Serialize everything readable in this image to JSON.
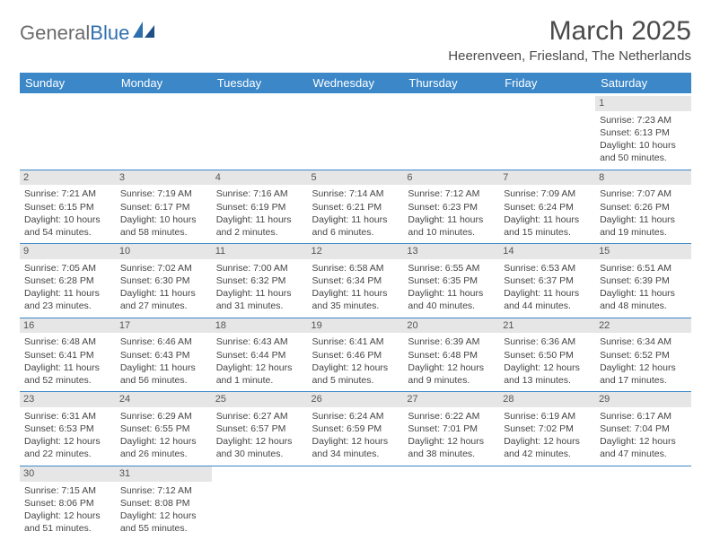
{
  "logo": {
    "text_a": "General",
    "text_b": "Blue"
  },
  "title": "March 2025",
  "subtitle": "Heerenveen, Friesland, The Netherlands",
  "colors": {
    "header_bg": "#3b87c8",
    "header_fg": "#ffffff",
    "daynum_bg": "#e6e6e6",
    "row_sep": "#3b87c8",
    "text": "#444444"
  },
  "day_headers": [
    "Sunday",
    "Monday",
    "Tuesday",
    "Wednesday",
    "Thursday",
    "Friday",
    "Saturday"
  ],
  "weeks": [
    [
      {
        "n": "",
        "empty": true
      },
      {
        "n": "",
        "empty": true
      },
      {
        "n": "",
        "empty": true
      },
      {
        "n": "",
        "empty": true
      },
      {
        "n": "",
        "empty": true
      },
      {
        "n": "",
        "empty": true
      },
      {
        "n": "1",
        "sr": "Sunrise: 7:23 AM",
        "ss": "Sunset: 6:13 PM",
        "dl": "Daylight: 10 hours and 50 minutes."
      }
    ],
    [
      {
        "n": "2",
        "sr": "Sunrise: 7:21 AM",
        "ss": "Sunset: 6:15 PM",
        "dl": "Daylight: 10 hours and 54 minutes."
      },
      {
        "n": "3",
        "sr": "Sunrise: 7:19 AM",
        "ss": "Sunset: 6:17 PM",
        "dl": "Daylight: 10 hours and 58 minutes."
      },
      {
        "n": "4",
        "sr": "Sunrise: 7:16 AM",
        "ss": "Sunset: 6:19 PM",
        "dl": "Daylight: 11 hours and 2 minutes."
      },
      {
        "n": "5",
        "sr": "Sunrise: 7:14 AM",
        "ss": "Sunset: 6:21 PM",
        "dl": "Daylight: 11 hours and 6 minutes."
      },
      {
        "n": "6",
        "sr": "Sunrise: 7:12 AM",
        "ss": "Sunset: 6:23 PM",
        "dl": "Daylight: 11 hours and 10 minutes."
      },
      {
        "n": "7",
        "sr": "Sunrise: 7:09 AM",
        "ss": "Sunset: 6:24 PM",
        "dl": "Daylight: 11 hours and 15 minutes."
      },
      {
        "n": "8",
        "sr": "Sunrise: 7:07 AM",
        "ss": "Sunset: 6:26 PM",
        "dl": "Daylight: 11 hours and 19 minutes."
      }
    ],
    [
      {
        "n": "9",
        "sr": "Sunrise: 7:05 AM",
        "ss": "Sunset: 6:28 PM",
        "dl": "Daylight: 11 hours and 23 minutes."
      },
      {
        "n": "10",
        "sr": "Sunrise: 7:02 AM",
        "ss": "Sunset: 6:30 PM",
        "dl": "Daylight: 11 hours and 27 minutes."
      },
      {
        "n": "11",
        "sr": "Sunrise: 7:00 AM",
        "ss": "Sunset: 6:32 PM",
        "dl": "Daylight: 11 hours and 31 minutes."
      },
      {
        "n": "12",
        "sr": "Sunrise: 6:58 AM",
        "ss": "Sunset: 6:34 PM",
        "dl": "Daylight: 11 hours and 35 minutes."
      },
      {
        "n": "13",
        "sr": "Sunrise: 6:55 AM",
        "ss": "Sunset: 6:35 PM",
        "dl": "Daylight: 11 hours and 40 minutes."
      },
      {
        "n": "14",
        "sr": "Sunrise: 6:53 AM",
        "ss": "Sunset: 6:37 PM",
        "dl": "Daylight: 11 hours and 44 minutes."
      },
      {
        "n": "15",
        "sr": "Sunrise: 6:51 AM",
        "ss": "Sunset: 6:39 PM",
        "dl": "Daylight: 11 hours and 48 minutes."
      }
    ],
    [
      {
        "n": "16",
        "sr": "Sunrise: 6:48 AM",
        "ss": "Sunset: 6:41 PM",
        "dl": "Daylight: 11 hours and 52 minutes."
      },
      {
        "n": "17",
        "sr": "Sunrise: 6:46 AM",
        "ss": "Sunset: 6:43 PM",
        "dl": "Daylight: 11 hours and 56 minutes."
      },
      {
        "n": "18",
        "sr": "Sunrise: 6:43 AM",
        "ss": "Sunset: 6:44 PM",
        "dl": "Daylight: 12 hours and 1 minute."
      },
      {
        "n": "19",
        "sr": "Sunrise: 6:41 AM",
        "ss": "Sunset: 6:46 PM",
        "dl": "Daylight: 12 hours and 5 minutes."
      },
      {
        "n": "20",
        "sr": "Sunrise: 6:39 AM",
        "ss": "Sunset: 6:48 PM",
        "dl": "Daylight: 12 hours and 9 minutes."
      },
      {
        "n": "21",
        "sr": "Sunrise: 6:36 AM",
        "ss": "Sunset: 6:50 PM",
        "dl": "Daylight: 12 hours and 13 minutes."
      },
      {
        "n": "22",
        "sr": "Sunrise: 6:34 AM",
        "ss": "Sunset: 6:52 PM",
        "dl": "Daylight: 12 hours and 17 minutes."
      }
    ],
    [
      {
        "n": "23",
        "sr": "Sunrise: 6:31 AM",
        "ss": "Sunset: 6:53 PM",
        "dl": "Daylight: 12 hours and 22 minutes."
      },
      {
        "n": "24",
        "sr": "Sunrise: 6:29 AM",
        "ss": "Sunset: 6:55 PM",
        "dl": "Daylight: 12 hours and 26 minutes."
      },
      {
        "n": "25",
        "sr": "Sunrise: 6:27 AM",
        "ss": "Sunset: 6:57 PM",
        "dl": "Daylight: 12 hours and 30 minutes."
      },
      {
        "n": "26",
        "sr": "Sunrise: 6:24 AM",
        "ss": "Sunset: 6:59 PM",
        "dl": "Daylight: 12 hours and 34 minutes."
      },
      {
        "n": "27",
        "sr": "Sunrise: 6:22 AM",
        "ss": "Sunset: 7:01 PM",
        "dl": "Daylight: 12 hours and 38 minutes."
      },
      {
        "n": "28",
        "sr": "Sunrise: 6:19 AM",
        "ss": "Sunset: 7:02 PM",
        "dl": "Daylight: 12 hours and 42 minutes."
      },
      {
        "n": "29",
        "sr": "Sunrise: 6:17 AM",
        "ss": "Sunset: 7:04 PM",
        "dl": "Daylight: 12 hours and 47 minutes."
      }
    ],
    [
      {
        "n": "30",
        "sr": "Sunrise: 7:15 AM",
        "ss": "Sunset: 8:06 PM",
        "dl": "Daylight: 12 hours and 51 minutes."
      },
      {
        "n": "31",
        "sr": "Sunrise: 7:12 AM",
        "ss": "Sunset: 8:08 PM",
        "dl": "Daylight: 12 hours and 55 minutes."
      },
      {
        "n": "",
        "empty": true
      },
      {
        "n": "",
        "empty": true
      },
      {
        "n": "",
        "empty": true
      },
      {
        "n": "",
        "empty": true
      },
      {
        "n": "",
        "empty": true
      }
    ]
  ]
}
